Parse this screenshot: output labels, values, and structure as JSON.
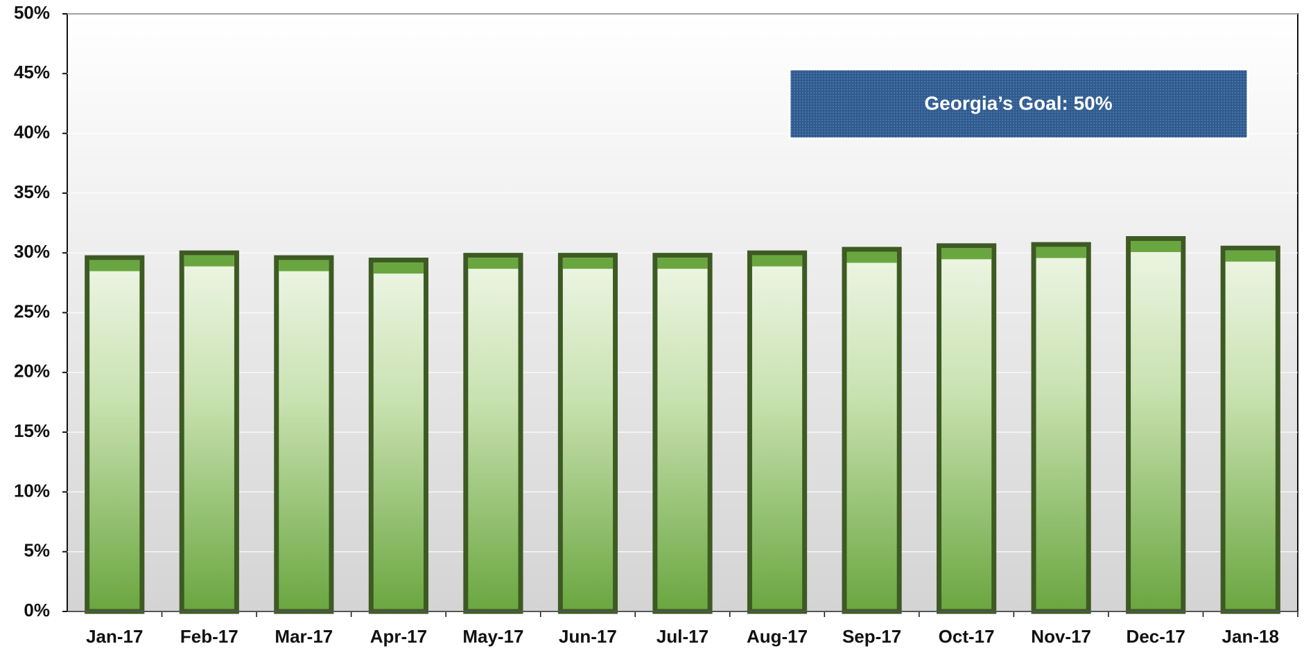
{
  "chart_data": {
    "type": "bar",
    "annotation": "Georgia’s Goal:  50%",
    "categories": [
      "Jan-17",
      "Feb-17",
      "Mar-17",
      "Apr-17",
      "May-17",
      "Jun-17",
      "Jul-17",
      "Aug-17",
      "Sep-17",
      "Oct-17",
      "Nov-17",
      "Dec-17",
      "Jan-18"
    ],
    "values": [
      29.6,
      30.0,
      29.6,
      29.4,
      29.8,
      29.8,
      29.8,
      30.0,
      30.3,
      30.6,
      30.7,
      31.2,
      30.4
    ],
    "color": "#6aa63f",
    "ylim": [
      0,
      50
    ],
    "yticks": [
      {
        "value": 0,
        "label": "0%"
      },
      {
        "value": 5,
        "label": "5%"
      },
      {
        "value": 10,
        "label": "10%"
      },
      {
        "value": 15,
        "label": "15%"
      },
      {
        "value": 20,
        "label": "20%"
      },
      {
        "value": 25,
        "label": "25%"
      },
      {
        "value": 30,
        "label": "30%"
      },
      {
        "value": 35,
        "label": "35%"
      },
      {
        "value": 40,
        "label": "40%"
      },
      {
        "value": 45,
        "label": "45%"
      },
      {
        "value": 50,
        "label": "50%"
      }
    ],
    "grid": true
  }
}
